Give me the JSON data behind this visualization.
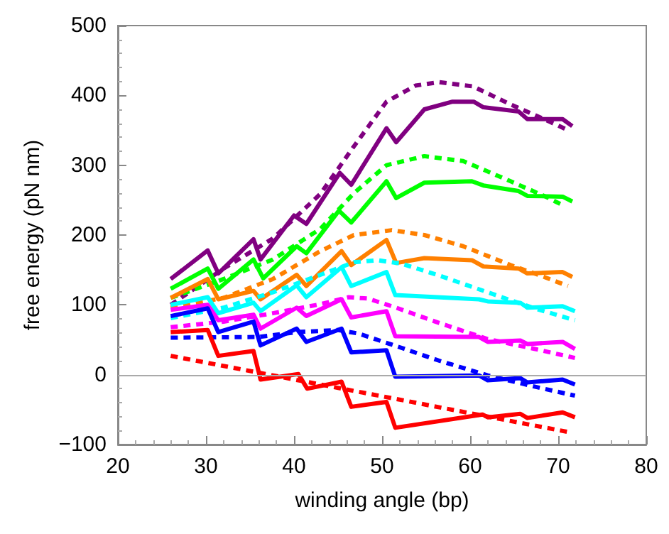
{
  "chart_data": {
    "type": "line",
    "xlabel": "winding angle (bp)",
    "ylabel": "free energy (pN nm)",
    "xlim": [
      20,
      80
    ],
    "xticks": [
      20,
      30,
      40,
      50,
      60,
      70,
      80
    ],
    "ylim": [
      -100,
      500
    ],
    "yticks": [
      -100,
      0,
      100,
      200,
      300,
      400,
      500
    ],
    "marker": "none",
    "ref_lines": [
      {
        "axis": "y",
        "value": 0,
        "color": "#aaaaaa"
      }
    ],
    "series": [
      {
        "color": "#800080",
        "line_style": "solid",
        "x": [
          26,
          30.2,
          31.4,
          35.4,
          36.2,
          40,
          41.4,
          45.2,
          46.5,
          50.5,
          51.6,
          54.8,
          58,
          60.4,
          61.5,
          65.5,
          66.5,
          70.5,
          71.6
        ],
        "values": [
          137,
          178,
          145,
          194,
          165,
          228,
          216,
          289,
          272,
          353,
          333,
          380,
          391,
          391,
          383,
          377,
          366,
          366,
          356
        ]
      },
      {
        "color": "#800080",
        "line_style": "dashed",
        "x": [
          26,
          32,
          37.6,
          43,
          46.8,
          50.5,
          53.8,
          56.5,
          60.3,
          64.6,
          68.4,
          70.8
        ],
        "values": [
          100,
          152,
          195,
          259,
          327,
          391,
          414,
          419,
          413,
          387,
          366,
          352
        ]
      },
      {
        "color": "#00ff00",
        "line_style": "solid",
        "x": [
          26,
          30.2,
          31.4,
          35.4,
          36.5,
          40.3,
          41.4,
          45.1,
          46.5,
          50.5,
          51.6,
          54.8,
          60.2,
          61.5,
          65.5,
          66.5,
          70.5,
          71.6
        ],
        "values": [
          123,
          152,
          123,
          165,
          138,
          184,
          174,
          235,
          218,
          277,
          253,
          275,
          277,
          271,
          263,
          256,
          255,
          248
        ]
      },
      {
        "color": "#00ff00",
        "line_style": "dashed",
        "x": [
          26,
          32,
          37.6,
          43,
          46.8,
          50.5,
          54.8,
          59.2,
          64.6,
          68.4,
          70.8
        ],
        "values": [
          110,
          137,
          165,
          209,
          260,
          300,
          313,
          306,
          277,
          256,
          241
        ]
      },
      {
        "color": "#ff8000",
        "line_style": "solid",
        "x": [
          26,
          30.2,
          31.4,
          35.4,
          36.2,
          40.3,
          41.4,
          45.4,
          46.5,
          50.5,
          51.6,
          54.8,
          60.2,
          61.5,
          65.5,
          66.5,
          70.5,
          71.6
        ],
        "values": [
          110,
          137,
          108,
          120,
          108,
          143,
          127,
          177,
          157,
          193,
          160,
          167,
          164,
          155,
          152,
          145,
          147,
          140
        ]
      },
      {
        "color": "#ff8000",
        "line_style": "dashed",
        "x": [
          26,
          32,
          37.6,
          43,
          46.8,
          51.1,
          54.8,
          59.2,
          64.6,
          68.4,
          71.1
        ],
        "values": [
          96,
          110,
          137,
          177,
          200,
          207,
          200,
          184,
          157,
          140,
          127
        ]
      },
      {
        "color": "#00ffff",
        "line_style": "solid",
        "x": [
          26,
          30.2,
          31.4,
          35.4,
          36.2,
          40.3,
          41.4,
          45.4,
          46.5,
          50.5,
          51.5,
          61,
          62,
          65.7,
          66.5,
          70.5,
          71.9
        ],
        "values": [
          100,
          111,
          88,
          103,
          91,
          128,
          111,
          154,
          127,
          147,
          114,
          108,
          105,
          103,
          96,
          98,
          91
        ]
      },
      {
        "color": "#00ffff",
        "line_style": "dashed",
        "x": [
          26,
          32,
          37.6,
          43,
          46.8,
          49.5,
          52.2,
          56.5,
          62,
          67.3,
          71.9
        ],
        "values": [
          81,
          96,
          118,
          143,
          161,
          164,
          159,
          142,
          118,
          95,
          78
        ]
      },
      {
        "color": "#ff00ff",
        "line_style": "solid",
        "x": [
          26,
          30.2,
          31.4,
          35.4,
          36.2,
          40.3,
          41.4,
          45.4,
          46.5,
          50.5,
          51.5,
          61,
          62,
          65.7,
          66.5,
          70.5,
          71.9
        ],
        "values": [
          93,
          100,
          78,
          86,
          66,
          96,
          84,
          108,
          82,
          91,
          55,
          54,
          47,
          49,
          44,
          47,
          37
        ]
      },
      {
        "color": "#ff00ff",
        "line_style": "dashed",
        "x": [
          26,
          32,
          37.6,
          43,
          46.2,
          48.4,
          51.6,
          56.5,
          62,
          67.3,
          71.9
        ],
        "values": [
          68,
          76,
          88,
          101,
          111,
          109,
          96,
          74,
          51,
          37,
          24
        ]
      },
      {
        "color": "#0000ff",
        "line_style": "solid",
        "x": [
          26,
          30.2,
          31.4,
          35.4,
          36.2,
          40.3,
          41.4,
          45.4,
          46.5,
          50.5,
          51.5,
          61,
          62,
          65.7,
          66.5,
          70.5,
          71.9
        ],
        "values": [
          84,
          95,
          61,
          76,
          42,
          66,
          47,
          66,
          32,
          35,
          -3,
          -1,
          -8,
          -5,
          -11,
          -7,
          -14
        ]
      },
      {
        "color": "#0000ff",
        "line_style": "dashed",
        "x": [
          26,
          36,
          40.3,
          45,
          47.3,
          51.6,
          56.5,
          62,
          67.3,
          71.9
        ],
        "values": [
          53,
          54,
          61,
          64,
          59,
          41,
          20,
          -1,
          -17,
          -30
        ]
      },
      {
        "color": "#ff0000",
        "line_style": "solid",
        "x": [
          26,
          30.2,
          31.4,
          35.4,
          36.2,
          40.5,
          41.5,
          45.4,
          46.5,
          50.5,
          51.5,
          61.4,
          62,
          65.7,
          66.5,
          70.5,
          71.9
        ],
        "values": [
          61,
          64,
          27,
          34,
          -7,
          1,
          -20,
          -10,
          -46,
          -39,
          -76,
          -57,
          -61,
          -56,
          -62,
          -54,
          -61
        ]
      },
      {
        "color": "#ff0000",
        "line_style": "dashed",
        "x": [
          26,
          48.8,
          71.5
        ],
        "values": [
          27,
          -28,
          -83
        ]
      }
    ]
  }
}
